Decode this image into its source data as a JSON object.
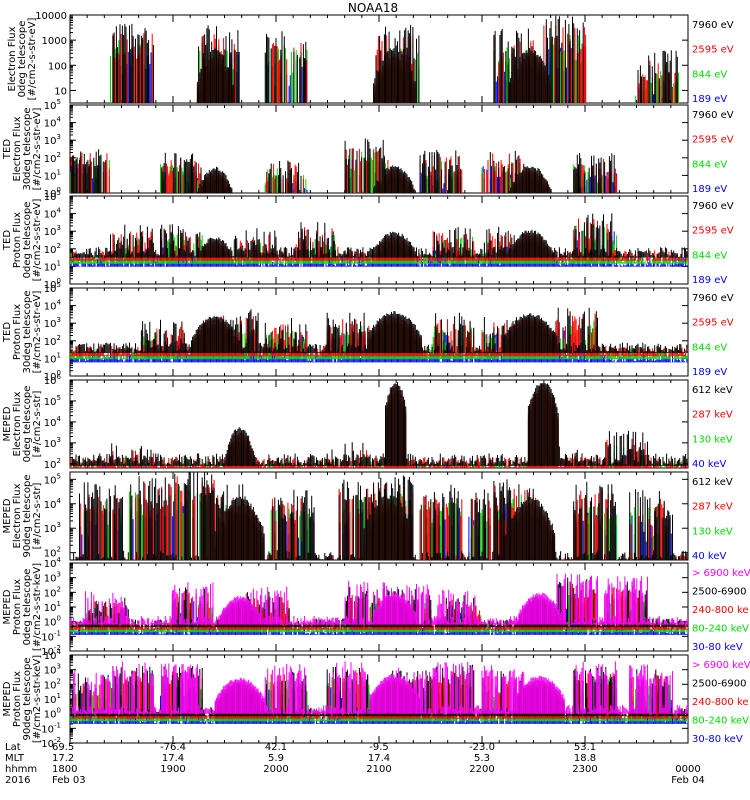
{
  "chart_data": {
    "type": "line",
    "title": "NOAA18",
    "x_axis": {
      "rows": [
        {
          "label": "Lat",
          "ticks": [
            "69.5",
            "-76.4",
            "42.1",
            "-9.5",
            "-23.0",
            "53.1",
            ""
          ]
        },
        {
          "label": "MLT",
          "ticks": [
            "17.2",
            "17.4",
            "5.9",
            "17.4",
            "5.3",
            "18.8",
            ""
          ]
        },
        {
          "label": "hhmm",
          "ticks": [
            "1800",
            "1900",
            "2000",
            "2100",
            "2200",
            "2300",
            "0000"
          ]
        },
        {
          "label": "2016",
          "ticks": [
            "Feb 03",
            "",
            "",
            "",
            "",
            "",
            "Feb 04"
          ]
        }
      ],
      "minor_ticks_per_major": 6,
      "range": [
        "1800",
        "0000"
      ]
    },
    "panels": [
      {
        "ylabel": [
          "Electron Flux",
          "0deg telescope",
          "[#/cm2-s-str-eV]"
        ],
        "ytick_labels": [
          "10",
          "100",
          "1000",
          "10000"
        ],
        "ylog": [
          0.5,
          4
        ],
        "series": [
          {
            "name": "7960 eV",
            "color": "#000000"
          },
          {
            "name": "2595 eV",
            "color": "#ff0000"
          },
          {
            "name": "844 eV",
            "color": "#00dd00"
          },
          {
            "name": "189 eV",
            "color": "#0000ff"
          }
        ],
        "zones": [
          [
            0.1,
            3.2
          ],
          [
            0.24,
            3.0
          ],
          [
            0.35,
            2.8
          ],
          [
            0.53,
            3.0
          ],
          [
            0.72,
            2.9
          ],
          [
            0.8,
            3.4
          ],
          [
            0.95,
            2.0
          ]
        ],
        "arches": [
          [
            0.235,
            0.03,
            2.6
          ],
          [
            0.525,
            0.035,
            2.6
          ],
          [
            0.745,
            0.035,
            2.6
          ]
        ],
        "baseline": null
      },
      {
        "ylabel": [
          "TED",
          "Electron Flux",
          "30deg telescope",
          "[#/cm2-s-str-eV]"
        ],
        "ytick_labels": [
          "10^0",
          "10^1",
          "10^2",
          "10^3",
          "10^4",
          "10^5"
        ],
        "ylog": [
          0,
          5
        ],
        "series": [
          {
            "name": "7960 eV",
            "color": "#000000"
          },
          {
            "name": "2595 eV",
            "color": "#ff0000"
          },
          {
            "name": "844 eV",
            "color": "#00dd00"
          },
          {
            "name": "189 eV",
            "color": "#0000ff"
          }
        ],
        "zones": [
          [
            0.03,
            2.1
          ],
          [
            0.18,
            1.8
          ],
          [
            0.35,
            1.5
          ],
          [
            0.48,
            2.5
          ],
          [
            0.6,
            1.9
          ],
          [
            0.7,
            2.0
          ],
          [
            0.85,
            1.7
          ]
        ],
        "arches": [
          [
            0.235,
            0.03,
            1.4
          ],
          [
            0.525,
            0.035,
            1.5
          ],
          [
            0.745,
            0.035,
            1.5
          ]
        ],
        "baseline": null
      },
      {
        "ylabel": [
          "TED",
          "Proton Flux",
          "0deg telescope",
          "[#/cm2-s-str-eV]"
        ],
        "ytick_labels": [
          "10^0",
          "10^1",
          "10^2",
          "10^3",
          "10^4",
          "10^5"
        ],
        "ylog": [
          0,
          5
        ],
        "series": [
          {
            "name": "7960 eV",
            "color": "#000000"
          },
          {
            "name": "2595 eV",
            "color": "#ff0000"
          },
          {
            "name": "844 eV",
            "color": "#00dd00"
          },
          {
            "name": "189 eV",
            "color": "#0000ff"
          }
        ],
        "zones": [
          [
            0.1,
            2.8
          ],
          [
            0.18,
            3.0
          ],
          [
            0.3,
            2.6
          ],
          [
            0.4,
            3.0
          ],
          [
            0.62,
            2.8
          ],
          [
            0.7,
            2.7
          ],
          [
            0.85,
            3.5
          ]
        ],
        "arches": [
          [
            0.235,
            0.035,
            2.6
          ],
          [
            0.525,
            0.04,
            2.9
          ],
          [
            0.745,
            0.04,
            3.0
          ]
        ],
        "baseline": 1.8
      },
      {
        "ylabel": [
          "TED",
          "Proton Flux",
          "30deg telescope",
          "[#/cm2-s-str-eV]"
        ],
        "ytick_labels": [
          "10^0",
          "10^1",
          "10^2",
          "10^3",
          "10^4",
          "10^5"
        ],
        "ylog": [
          0,
          5
        ],
        "series": [
          {
            "name": "7960 eV",
            "color": "#000000"
          },
          {
            "name": "2595 eV",
            "color": "#ff0000"
          },
          {
            "name": "844 eV",
            "color": "#00dd00"
          },
          {
            "name": "189 eV",
            "color": "#0000ff"
          }
        ],
        "zones": [
          [
            0.15,
            2.6
          ],
          [
            0.27,
            3.2
          ],
          [
            0.35,
            2.7
          ],
          [
            0.45,
            3.0
          ],
          [
            0.62,
            3.0
          ],
          [
            0.7,
            2.9
          ],
          [
            0.82,
            3.3
          ]
        ],
        "arches": [
          [
            0.235,
            0.04,
            3.4
          ],
          [
            0.525,
            0.045,
            3.6
          ],
          [
            0.745,
            0.045,
            3.5
          ]
        ],
        "baseline": 1.6
      },
      {
        "ylabel": [
          "MEPED",
          "Electron Flux",
          "0deg telescope",
          "[#/cm2-s-str]"
        ],
        "ytick_labels": [
          "10^2",
          "10^3",
          "10^4",
          "10^5",
          "10^6"
        ],
        "ylog": [
          1.8,
          6
        ],
        "series": [
          {
            "name": "612 keV",
            "color": "#000000"
          },
          {
            "name": "287 keV",
            "color": "#ff0000"
          },
          {
            "name": "130 keV",
            "color": "#00dd00"
          },
          {
            "name": "40 keV",
            "color": "#0000ff"
          }
        ],
        "zones": [
          [
            0.1,
            2.4
          ],
          [
            0.45,
            2.5
          ],
          [
            0.8,
            2.3
          ],
          [
            0.9,
            3.0
          ]
        ],
        "arches": [
          [
            0.275,
            0.025,
            3.7
          ],
          [
            0.527,
            0.018,
            5.9
          ],
          [
            0.765,
            0.025,
            5.9
          ]
        ],
        "baseline": 2.2
      },
      {
        "ylabel": [
          "MEPED",
          "Electron Flux",
          "90deg telescope",
          "[#/cm2-s-str]"
        ],
        "ytick_labels": [
          "10^2",
          "10^3",
          "10^4",
          "10^5"
        ],
        "ylog": [
          1.7,
          5.3
        ],
        "series": [
          {
            "name": "612 keV",
            "color": "#000000"
          },
          {
            "name": "287 keV",
            "color": "#ff0000"
          },
          {
            "name": "130 keV",
            "color": "#00dd00"
          },
          {
            "name": "40 keV",
            "color": "#0000ff"
          }
        ],
        "zones": [
          [
            0.05,
            4.3
          ],
          [
            0.13,
            4.6
          ],
          [
            0.2,
            4.9
          ],
          [
            0.25,
            4.2
          ],
          [
            0.36,
            4.0
          ],
          [
            0.47,
            4.4
          ],
          [
            0.52,
            4.6
          ],
          [
            0.6,
            4.3
          ],
          [
            0.68,
            4.2
          ],
          [
            0.72,
            4.5
          ],
          [
            0.85,
            4.3
          ],
          [
            0.94,
            4.0
          ]
        ],
        "arches": [
          [
            0.275,
            0.04,
            4.2
          ],
          [
            0.515,
            0.04,
            4.3
          ],
          [
            0.745,
            0.04,
            4.2
          ]
        ],
        "baseline": 1.8
      },
      {
        "ylabel": [
          "MEPED",
          "Proton Flux",
          "0deg telescope",
          "[#/cm2-s-str-keV]"
        ],
        "ytick_labels": [
          "10^-2",
          "10^-1",
          "10^0",
          "10^1",
          "10^2",
          "10^3",
          "10^4"
        ],
        "ylog": [
          -2,
          4
        ],
        "series": [
          {
            "name": "> 6900 keV",
            "color": "#ff00ff"
          },
          {
            "name": "2500-6900",
            "color": "#000000"
          },
          {
            "name": "240-800 ke",
            "color": "#ff0000"
          },
          {
            "name": "80-240 keV",
            "color": "#00dd00"
          },
          {
            "name": "30-80 keV",
            "color": "#0000ff"
          }
        ],
        "zones": [
          [
            0.06,
            1.5
          ],
          [
            0.2,
            2.2
          ],
          [
            0.32,
            1.8
          ],
          [
            0.48,
            2.2
          ],
          [
            0.55,
            2.0
          ],
          [
            0.63,
            1.6
          ],
          [
            0.82,
            2.8
          ],
          [
            0.9,
            2.5
          ]
        ],
        "arches": [
          [
            0.275,
            0.035,
            1.7
          ],
          [
            0.525,
            0.035,
            1.9
          ],
          [
            0.76,
            0.035,
            1.9
          ]
        ],
        "baseline": 0.1
      },
      {
        "ylabel": [
          "MEPED",
          "Proton Flux",
          "90deg telescope",
          "[#/cm2-s-str-keV]"
        ],
        "ytick_labels": [
          "10^-2",
          "10^-1",
          "10^0",
          "10^1",
          "10^2",
          "10^3",
          "10^4"
        ],
        "ylog": [
          -2,
          4
        ],
        "series": [
          {
            "name": "> 6900 keV",
            "color": "#ff00ff"
          },
          {
            "name": "2500-6900",
            "color": "#000000"
          },
          {
            "name": "240-800 ke",
            "color": "#ff0000"
          },
          {
            "name": "80-240 keV",
            "color": "#00dd00"
          },
          {
            "name": "30-80 keV",
            "color": "#0000ff"
          }
        ],
        "zones": [
          [
            0.03,
            2.5
          ],
          [
            0.1,
            3.0
          ],
          [
            0.18,
            3.0
          ],
          [
            0.35,
            2.8
          ],
          [
            0.45,
            3.0
          ],
          [
            0.55,
            2.7
          ],
          [
            0.62,
            3.1
          ],
          [
            0.7,
            2.7
          ],
          [
            0.85,
            3.0
          ],
          [
            0.94,
            2.8
          ]
        ],
        "arches": [
          [
            0.275,
            0.04,
            2.4
          ],
          [
            0.525,
            0.04,
            2.6
          ],
          [
            0.76,
            0.04,
            2.5
          ]
        ],
        "baseline": 0.3
      }
    ]
  }
}
